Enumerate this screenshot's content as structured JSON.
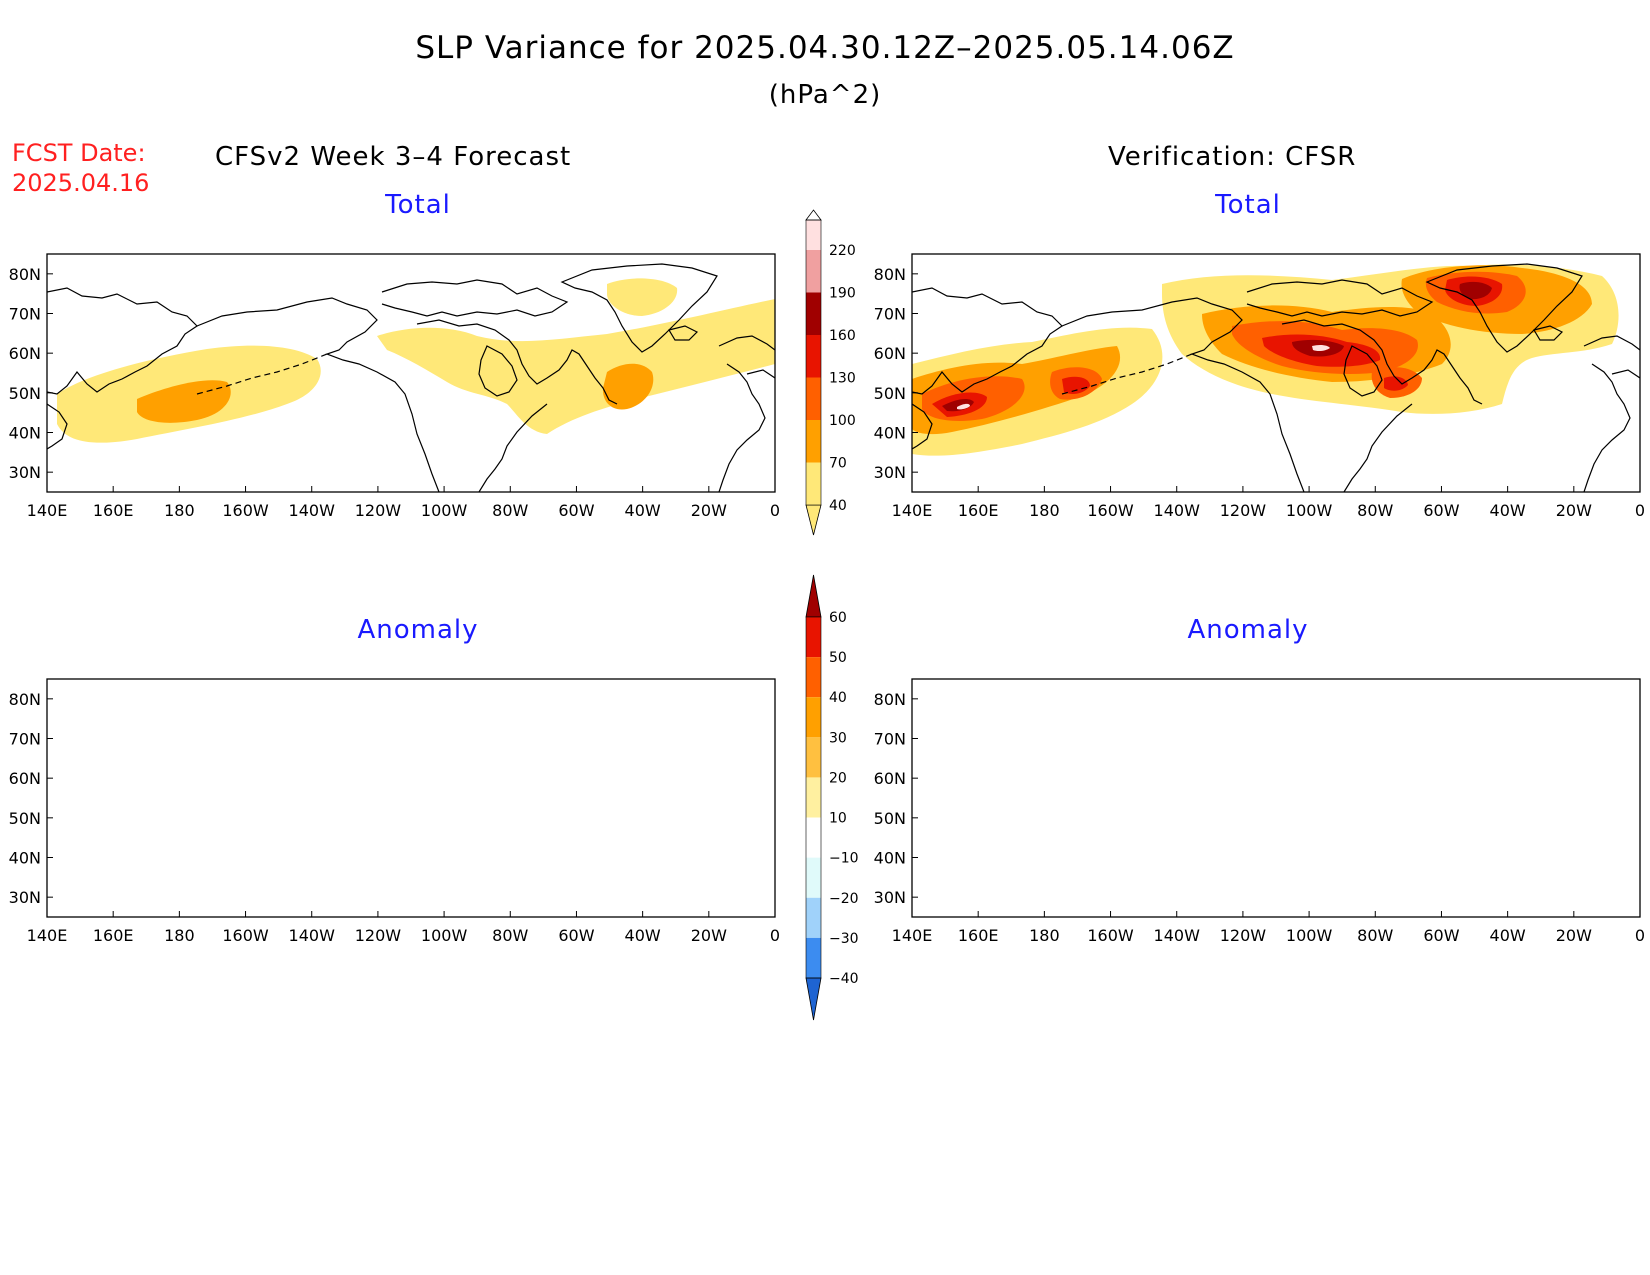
{
  "title": "SLP Variance for 2025.04.30.12Z–2025.05.14.06Z",
  "units": "(hPa^2)",
  "fcst_label_line1": "FCST Date:",
  "fcst_label_line2": "2025.04.16",
  "left_header": "CFSv2 Week 3–4 Forecast",
  "right_header": "Verification: CFSR",
  "panels": {
    "forecast_total": {
      "title": "Total"
    },
    "verification_total": {
      "title": "Total"
    },
    "forecast_anomaly": {
      "title": "Anomaly"
    },
    "verification_anomaly": {
      "title": "Anomaly"
    }
  },
  "map_axes": {
    "lon_labels": [
      "140E",
      "160E",
      "180",
      "160W",
      "140W",
      "120W",
      "100W",
      "80W",
      "60W",
      "40W",
      "20W",
      "0"
    ],
    "lat_labels": [
      "80N",
      "70N",
      "60N",
      "50N",
      "40N",
      "30N"
    ],
    "lat_range": [
      25,
      85
    ],
    "lon_range_label": "140E to 0"
  },
  "colorbars": {
    "total": {
      "levels": [
        "40",
        "70",
        "100",
        "130",
        "160",
        "190",
        "220"
      ],
      "colors": [
        "#ffe878",
        "#ffa000",
        "#ff6000",
        "#e81400",
        "#a00000",
        "#f0a0a0",
        "#ffe0e0",
        "#ffffff"
      ]
    },
    "anomaly": {
      "levels": [
        "60",
        "50",
        "40",
        "30",
        "20",
        "10",
        "−10",
        "−20",
        "−30",
        "−40"
      ],
      "colors_top_to_bottom": [
        "#a00000",
        "#e81400",
        "#ff6000",
        "#ffa000",
        "#ffc040",
        "#fff0a0",
        "#ffffff",
        "#e0fafa",
        "#a0d2fa",
        "#3c8cf0",
        "#1e64d2"
      ]
    }
  },
  "colors": {
    "title_text": "#000000",
    "fcst_text": "#ff2020",
    "panel_title_text": "#1a1aff"
  }
}
